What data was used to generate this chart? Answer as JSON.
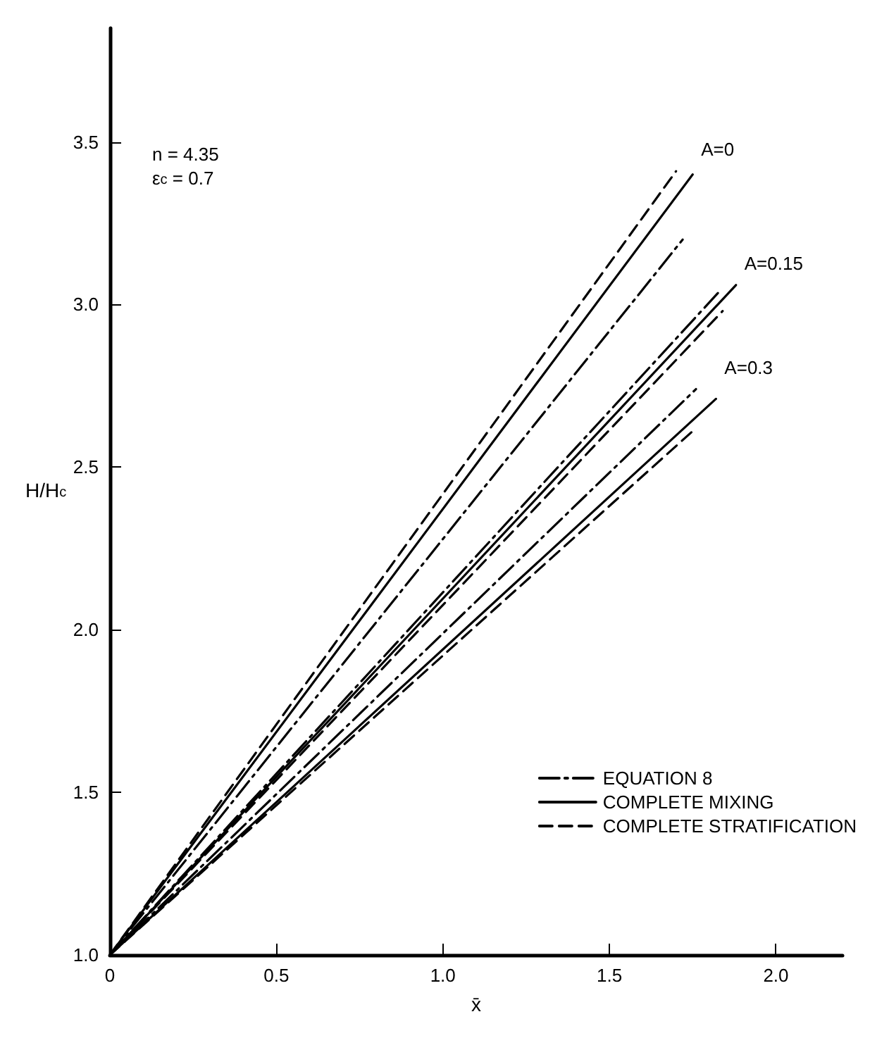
{
  "chart_data": {
    "type": "line",
    "xlabel": "x̄",
    "ylabel": "H/H$_{c}$",
    "xlim": [
      0,
      2.2
    ],
    "ylim": [
      1,
      3.85
    ],
    "xticks": [
      0,
      {
        "value": 0.5,
        "label": "0.5"
      },
      {
        "value": 1,
        "label": "1.0"
      },
      {
        "value": 1.5,
        "label": "1.5"
      },
      {
        "value": 2,
        "label": "2.0"
      }
    ],
    "yticks": [
      {
        "value": 1,
        "label": "1.0"
      },
      {
        "value": 1.5,
        "label": "1.5"
      },
      {
        "value": 2,
        "label": "2.0"
      },
      {
        "value": 2.5,
        "label": "2.5"
      },
      {
        "value": 3,
        "label": "3.0"
      },
      {
        "value": 3.5,
        "label": "3.5"
      }
    ],
    "grid": false,
    "legend": "bottom right",
    "marker": "none",
    "series": [
      {
        "name": "EQUATION 8",
        "color": "#000000",
        "line_style": "dashdot",
        "x": [
          0,
          1.72
        ],
        "values": [
          1,
          3.2
        ]
      },
      {
        "name": "COMPLETE MIXING",
        "color": "#000000",
        "line_style": "solid",
        "x": [
          0,
          1.75
        ],
        "values": [
          1,
          3.4
        ]
      },
      {
        "name": "COMPLETE STRATIFICATION",
        "color": "#000000",
        "line_style": "dashed",
        "x": [
          0,
          1.7
        ],
        "values": [
          1,
          3.41
        ]
      },
      {
        "color": "#000000",
        "line_style": "dashdot",
        "x": [
          0,
          1.83
        ],
        "values": [
          1,
          3.04
        ]
      },
      {
        "color": "#000000",
        "line_style": "solid",
        "x": [
          0,
          1.88
        ],
        "values": [
          1,
          3.06
        ]
      },
      {
        "color": "#000000",
        "line_style": "dashed",
        "x": [
          0,
          1.84
        ],
        "values": [
          1,
          2.98
        ]
      },
      {
        "color": "#000000",
        "line_style": "dashdot",
        "x": [
          0,
          1.76
        ],
        "values": [
          1,
          2.74
        ]
      },
      {
        "color": "#000000",
        "line_style": "solid",
        "x": [
          0,
          1.82
        ],
        "values": [
          1,
          2.71
        ]
      },
      {
        "color": "#000000",
        "line_style": "dashed",
        "x": [
          0,
          1.76
        ],
        "values": [
          1,
          2.62
        ]
      }
    ],
    "annotations": [
      "n = 4.35",
      "ε$_{c}$ = 0.7",
      "A=0",
      "A=0.15",
      "A=0.3"
    ]
  }
}
